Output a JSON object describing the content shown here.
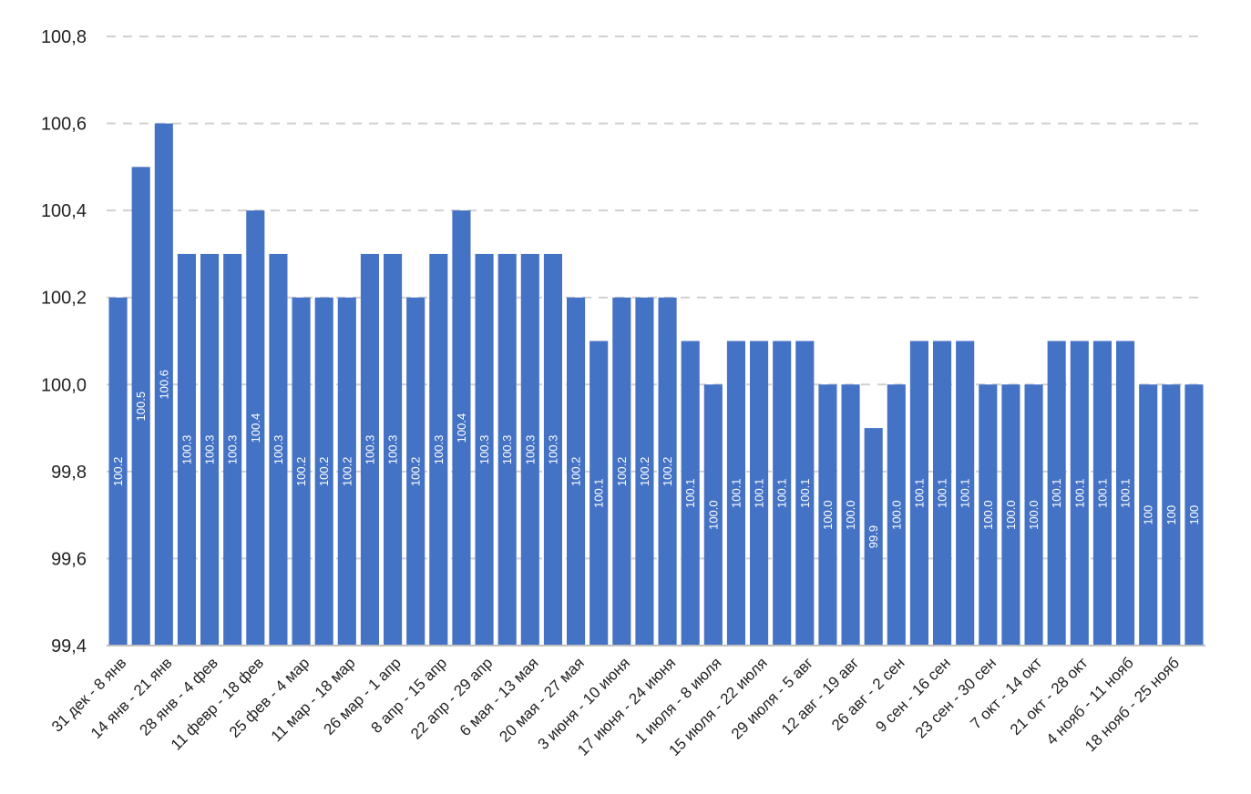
{
  "chart_data": {
    "type": "bar",
    "title": "",
    "xlabel": "",
    "ylabel": "",
    "ylim": [
      99.4,
      100.8
    ],
    "yticks": [
      "99,4",
      "99,6",
      "99,8",
      "100,0",
      "100,2",
      "100,4",
      "100,6",
      "100,8"
    ],
    "ytick_values": [
      99.4,
      99.6,
      99.8,
      100.0,
      100.2,
      100.4,
      100.6,
      100.8
    ],
    "grid": true,
    "bar_color": "#4472C4",
    "categories": [
      "31 дек - 8 янв",
      "",
      "14 янв - 21 янв",
      "",
      "28 янв - 4 фев",
      "",
      "11 февр - 18 фев",
      "",
      "25 фев - 4 мар",
      "",
      "11 мар - 18 мар",
      "",
      "26 мар - 1 апр",
      "",
      "8 апр - 15 апр",
      "",
      "22 апр - 29 апр",
      "",
      "6 мая - 13 мая",
      "",
      "20 мая - 27 мая",
      "",
      "3 июня - 10 июня",
      "",
      "17 июня - 24 июня",
      "",
      "1 июля - 8 июля",
      "",
      "15 июля - 22 июля",
      "",
      "29 июля - 5 авг",
      "",
      "12 авг - 19 авг",
      "",
      "26 авг - 2 сен",
      "",
      "9 сен - 16 сен",
      "",
      "23 сен - 30 сен",
      "",
      "7 окт - 14 окт",
      "",
      "21 окт - 28 окт",
      "",
      "4 нояб - 11 нояб",
      "",
      "18 нояб - 25 нояб",
      ""
    ],
    "values": [
      100.2,
      100.5,
      100.6,
      100.3,
      100.3,
      100.3,
      100.4,
      100.3,
      100.2,
      100.2,
      100.2,
      100.3,
      100.3,
      100.2,
      100.3,
      100.4,
      100.3,
      100.3,
      100.3,
      100.3,
      100.2,
      100.1,
      100.2,
      100.2,
      100.2,
      100.1,
      100.0,
      100.1,
      100.1,
      100.1,
      100.1,
      100.0,
      100.0,
      99.9,
      100.0,
      100.1,
      100.1,
      100.1,
      100.0,
      100.0,
      100.0,
      100.1,
      100.1,
      100.1,
      100.1,
      100.0,
      100.0,
      100.0
    ],
    "data_labels": [
      "100.2",
      "100.5",
      "100.6",
      "100.3",
      "100.3",
      "100.3",
      "100.4",
      "100.3",
      "100.2",
      "100.2",
      "100.2",
      "100.3",
      "100.3",
      "100.2",
      "100.3",
      "100.4",
      "100.3",
      "100.3",
      "100.3",
      "100.3",
      "100.2",
      "100.1",
      "100.2",
      "100.2",
      "100.2",
      "100.1",
      "100.0",
      "100.1",
      "100.1",
      "100.1",
      "100.1",
      "100.0",
      "100.0",
      "99.9",
      "100.0",
      "100.1",
      "100.1",
      "100.1",
      "100.0",
      "100.0",
      "100.0",
      "100.1",
      "100.1",
      "100.1",
      "100.1",
      "100",
      "100",
      "100"
    ]
  }
}
